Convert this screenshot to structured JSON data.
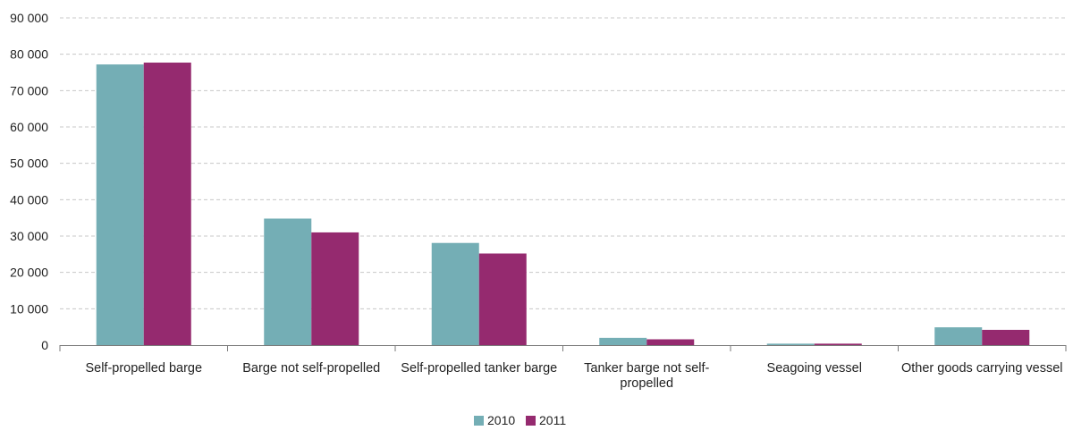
{
  "chart_data": {
    "type": "bar",
    "categories": [
      [
        "Self-propelled barge"
      ],
      [
        "Barge not self-propelled"
      ],
      [
        "Self-propelled tanker barge"
      ],
      [
        "Tanker barge not self-",
        "propelled"
      ],
      [
        "Seagoing vessel"
      ],
      [
        "Other goods carrying vessel"
      ]
    ],
    "series": [
      {
        "name": "2010",
        "color": "#74aeb5",
        "values": [
          77200,
          34800,
          28100,
          2000,
          400,
          4900
        ]
      },
      {
        "name": "2011",
        "color": "#952a6f",
        "values": [
          77700,
          31000,
          25200,
          1600,
          400,
          4200
        ]
      }
    ],
    "ylim": [
      0,
      90000
    ],
    "yticks": [
      0,
      10000,
      20000,
      30000,
      40000,
      50000,
      60000,
      70000,
      80000,
      90000
    ],
    "ytick_labels": [
      "0",
      "10 000",
      "20 000",
      "30 000",
      "40 000",
      "50 000",
      "60 000",
      "70 000",
      "80 000",
      "90 000"
    ],
    "grid": true,
    "grid_style": "dashed",
    "legend_position": "bottom-center",
    "title": "",
    "xlabel": "",
    "ylabel": ""
  }
}
